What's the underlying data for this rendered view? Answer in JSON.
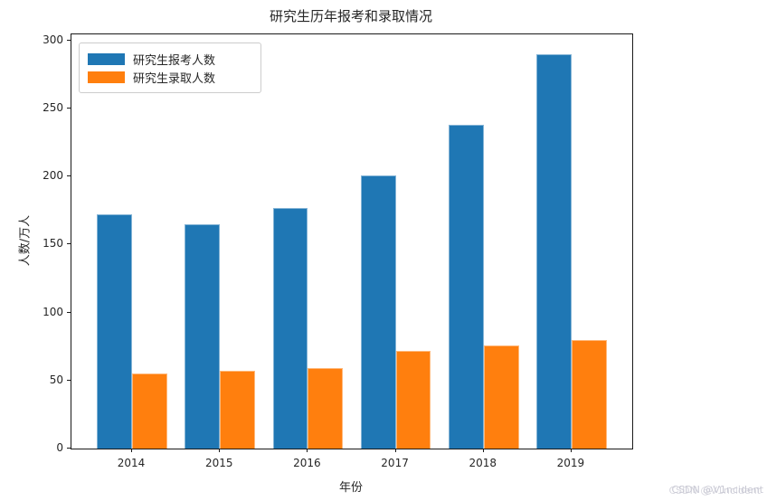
{
  "title": "研究生历年报考和录取情况",
  "watermark": {
    "text": "CSDN @V1ncident"
  },
  "chart_data": {
    "type": "bar",
    "title": "研究生历年报考和录取情况",
    "categories": [
      "2014",
      "2015",
      "2016",
      "2017",
      "2018",
      "2019"
    ],
    "x_years": [
      2014,
      2015,
      2016,
      2017,
      2018,
      2019
    ],
    "series": [
      {
        "name": "研究生报考人数",
        "color": "#1f77b4",
        "values": [
          172,
          165,
          177,
          201,
          238,
          290
        ]
      },
      {
        "name": "研究生录取人数",
        "color": "#ff7f0e",
        "values": [
          55,
          57,
          59,
          72,
          76,
          80
        ]
      }
    ],
    "xlabel": "年份",
    "ylabel": "人数/万人",
    "yticks": [
      0,
      50,
      100,
      150,
      200,
      250,
      300
    ],
    "ylim": [
      0,
      304.5
    ],
    "xlim": [
      2013.31,
      2019.69
    ],
    "bar_width": 0.4,
    "legend_position": "upper left",
    "grid": false,
    "frame_color": "#1a1a1a",
    "text_color": "#262626",
    "watermark_color": "#c9c9d4"
  }
}
